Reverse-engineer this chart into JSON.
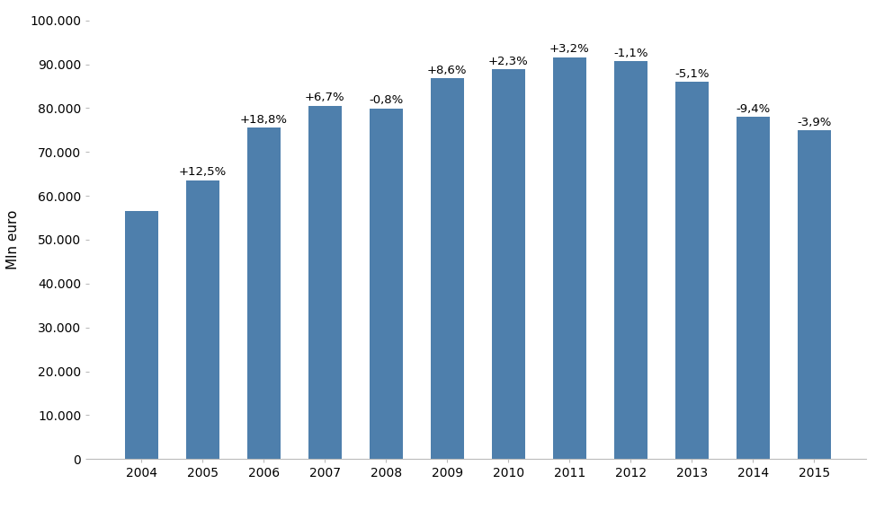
{
  "years": [
    2004,
    2005,
    2006,
    2007,
    2008,
    2009,
    2010,
    2011,
    2012,
    2013,
    2014,
    2015
  ],
  "values": [
    56500,
    63600,
    75500,
    80560,
    79910,
    86800,
    88800,
    91650,
    90640,
    86020,
    77940,
    74900
  ],
  "labels": [
    "",
    "+12,5%",
    "+18,8%",
    "+6,7%",
    "-0,8%",
    "+8,6%",
    "+2,3%",
    "+3,2%",
    "-1,1%",
    "-5,1%",
    "-9,4%",
    "-3,9%"
  ],
  "bar_color": "#4e7fac",
  "ylabel": "Mln euro",
  "ylim": [
    0,
    100000
  ],
  "yticks": [
    0,
    10000,
    20000,
    30000,
    40000,
    50000,
    60000,
    70000,
    80000,
    90000,
    100000
  ],
  "ytick_labels": [
    "0",
    "10.000",
    "20.000",
    "30.000",
    "40.000",
    "50.000",
    "60.000",
    "70.000",
    "80.000",
    "90.000",
    "100.000"
  ],
  "background_color": "#ffffff",
  "label_fontsize": 9.5,
  "ylabel_fontsize": 11,
  "tick_fontsize": 10,
  "bar_width": 0.55
}
